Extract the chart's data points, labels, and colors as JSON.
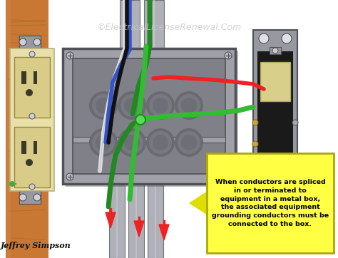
{
  "watermark": "©ElectricalLicenseRenewal.Com",
  "annotation_text": "When conductors are spliced\nin or terminated to\nequipment in a metal box,\nthe associated equipment\ngrounding conductors must be\nconnected to the box.",
  "credit_text": "Jeffrey Simpson",
  "bg_color": "#ffffff",
  "annotation_bg": "#ffff44",
  "annotation_border": "#dddd00",
  "annotation_text_color": "#000000",
  "arrow_color": "#dddd00",
  "wood_color": "#c87832",
  "wood_dark": "#8b5a1a",
  "wood_light": "#d4924a",
  "box_outer": "#a0a0a8",
  "box_inner": "#808088",
  "box_dark": "#505058",
  "box_light": "#c0c0c8",
  "outlet_body": "#d8cc88",
  "outlet_face": "#e8e0a8",
  "outlet_slot": "#3a3a2a",
  "switch_metal": "#9898a0",
  "switch_dark": "#222222",
  "switch_toggle": "#d8d08a",
  "conduit_color": "#b0b0b8",
  "conduit_dark": "#707078",
  "conduit_light": "#d0d0d8",
  "wire_red": "#ee2222",
  "wire_black": "#111111",
  "wire_white": "#dddddd",
  "wire_green": "#228822",
  "wire_green2": "#33bb33",
  "wire_blue": "#3355cc",
  "watermark_color": "#c8c8c8",
  "credit_color": "#111111"
}
